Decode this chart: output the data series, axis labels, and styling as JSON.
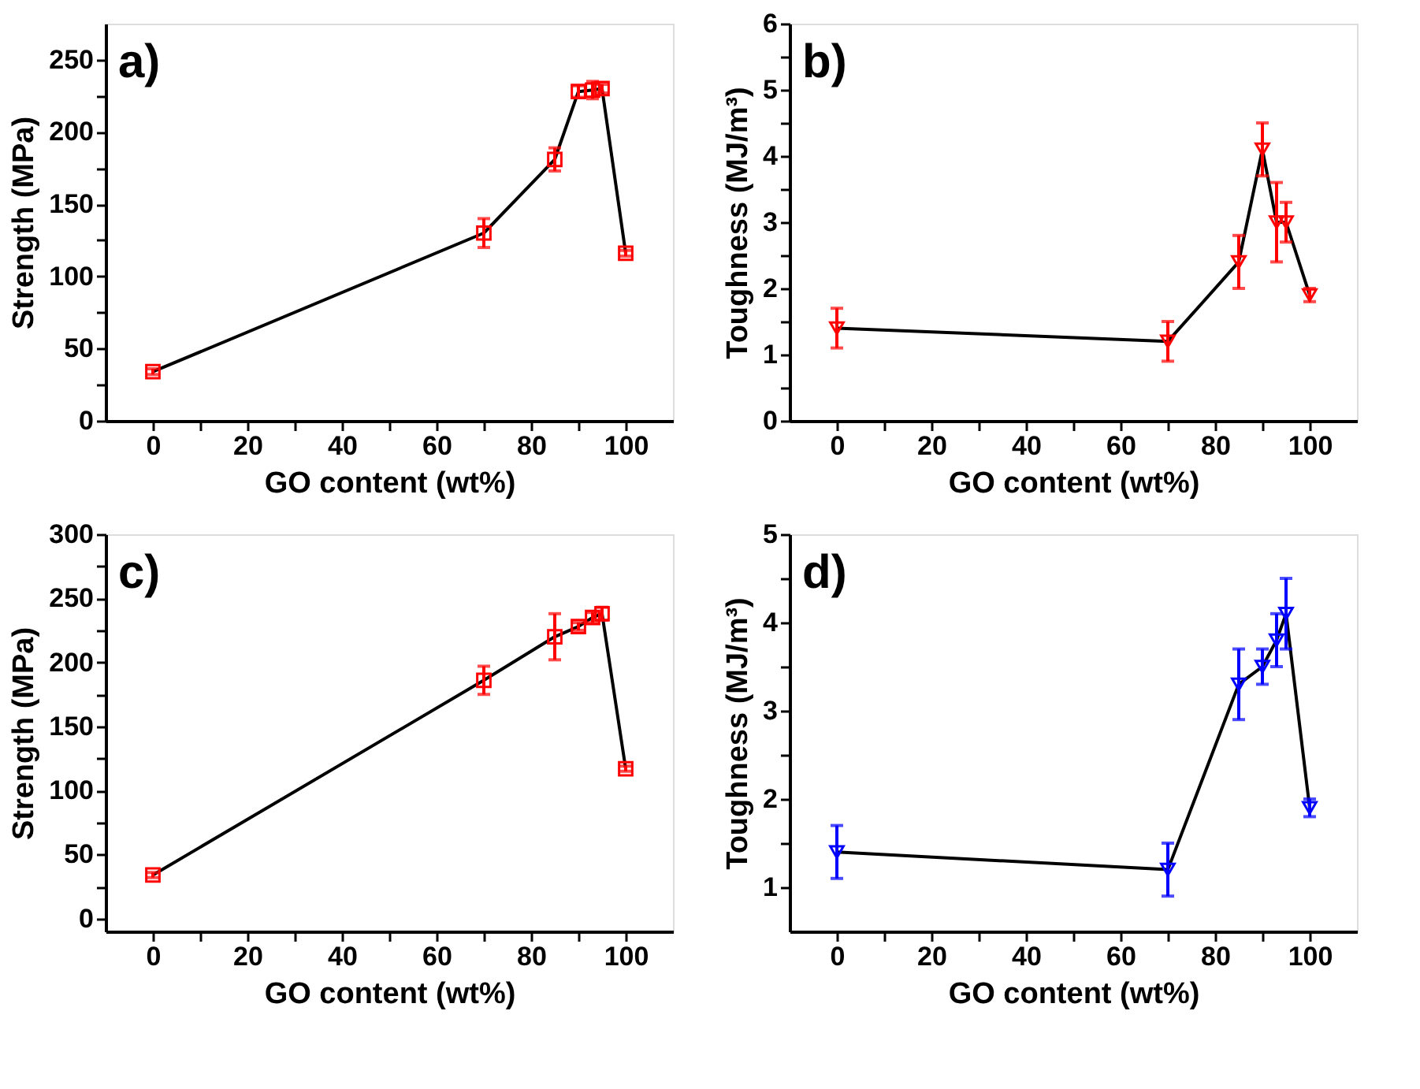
{
  "chart_data": [
    {
      "type": "line",
      "annotations": [
        "a)"
      ],
      "xlabel": "GO content (wt%)",
      "ylabel": "Strength (MPa)",
      "xlim": [
        -10,
        110
      ],
      "xticks": [
        0,
        {
          "value": 10,
          "label": null
        },
        20,
        {
          "value": 30,
          "label": null
        },
        40,
        {
          "value": 50,
          "label": null
        },
        60,
        {
          "value": 70,
          "label": null
        },
        80,
        {
          "value": 90,
          "label": null
        },
        100
      ],
      "ylim": [
        0,
        275
      ],
      "yticks": [
        0,
        {
          "value": 25,
          "label": null
        },
        50,
        {
          "value": 75,
          "label": null
        },
        100,
        {
          "value": 125,
          "label": null
        },
        150,
        {
          "value": 175,
          "label": null
        },
        200,
        {
          "value": 225,
          "label": null
        },
        250
      ],
      "grid": false,
      "x": [
        0,
        70,
        85,
        90,
        93,
        95,
        100
      ],
      "series": [
        {
          "color": "#000000",
          "values": [
            34,
            130,
            181,
            228,
            229,
            230,
            116
          ],
          "marker": "none"
        },
        {
          "type": "scatter",
          "color": "#ff0000",
          "marker": "square",
          "values": [
            34,
            130,
            181,
            228,
            229,
            230,
            116
          ],
          "errors": [
            2,
            10,
            8,
            4,
            6,
            3,
            2
          ]
        }
      ]
    },
    {
      "type": "line",
      "annotations": [
        "b)"
      ],
      "xlabel": "GO content (wt%)",
      "ylabel": "Toughness (MJ/m³)",
      "xlim": [
        -10,
        110
      ],
      "xticks": [
        0,
        {
          "value": 10,
          "label": null
        },
        20,
        {
          "value": 30,
          "label": null
        },
        40,
        {
          "value": 50,
          "label": null
        },
        60,
        {
          "value": 70,
          "label": null
        },
        80,
        {
          "value": 90,
          "label": null
        },
        100
      ],
      "ylim": [
        0,
        6
      ],
      "yticks": [
        0,
        {
          "value": 0.5,
          "label": null
        },
        1,
        {
          "value": 1.5,
          "label": null
        },
        2,
        {
          "value": 2.5,
          "label": null
        },
        3,
        {
          "value": 3.5,
          "label": null
        },
        4,
        {
          "value": 4.5,
          "label": null
        },
        5,
        {
          "value": 5.5,
          "label": null
        },
        6
      ],
      "grid": false,
      "x": [
        0,
        70,
        85,
        90,
        93,
        95,
        100
      ],
      "series": [
        {
          "color": "#000000",
          "values": [
            1.4,
            1.2,
            2.4,
            4.1,
            3.0,
            3.0,
            1.9
          ],
          "marker": "none"
        },
        {
          "type": "scatter",
          "color": "#ff0000",
          "marker": "triangle",
          "values": [
            1.4,
            1.2,
            2.4,
            4.1,
            3.0,
            3.0,
            1.9
          ],
          "errors": [
            0.3,
            0.3,
            0.4,
            0.4,
            0.6,
            0.3,
            0.1
          ]
        }
      ]
    },
    {
      "type": "line",
      "annotations": [
        "c)"
      ],
      "xlabel": "GO content (wt%)",
      "ylabel": "Strength (MPa)",
      "xlim": [
        -10,
        110
      ],
      "xticks": [
        0,
        {
          "value": 10,
          "label": null
        },
        20,
        {
          "value": 30,
          "label": null
        },
        40,
        {
          "value": 50,
          "label": null
        },
        60,
        {
          "value": 70,
          "label": null
        },
        80,
        {
          "value": 90,
          "label": null
        },
        100
      ],
      "ylim": [
        -10,
        300
      ],
      "yticks": [
        0,
        {
          "value": 25,
          "label": null
        },
        50,
        {
          "value": 75,
          "label": null
        },
        100,
        {
          "value": 125,
          "label": null
        },
        150,
        {
          "value": 175,
          "label": null
        },
        200,
        {
          "value": 225,
          "label": null
        },
        250,
        {
          "value": 275,
          "label": null
        },
        300
      ],
      "grid": false,
      "x": [
        0,
        70,
        85,
        90,
        93,
        95,
        100
      ],
      "series": [
        {
          "color": "#000000",
          "values": [
            34,
            186,
            220,
            228,
            235,
            238,
            117
          ],
          "marker": "none"
        },
        {
          "type": "scatter",
          "color": "#ff0000",
          "marker": "square",
          "values": [
            34,
            186,
            220,
            228,
            235,
            238,
            117
          ],
          "errors": [
            2,
            11,
            18,
            3,
            4,
            5,
            2
          ]
        }
      ]
    },
    {
      "type": "line",
      "annotations": [
        "d)"
      ],
      "xlabel": "GO content (wt%)",
      "ylabel": "Toughness (MJ/m³)",
      "xlim": [
        -10,
        110
      ],
      "xticks": [
        0,
        {
          "value": 10,
          "label": null
        },
        20,
        {
          "value": 30,
          "label": null
        },
        40,
        {
          "value": 50,
          "label": null
        },
        60,
        {
          "value": 70,
          "label": null
        },
        80,
        {
          "value": 90,
          "label": null
        },
        100
      ],
      "ylim": [
        0.5,
        5
      ],
      "yticks": [
        1,
        {
          "value": 1.5,
          "label": null
        },
        2,
        {
          "value": 2.5,
          "label": null
        },
        3,
        {
          "value": 3.5,
          "label": null
        },
        4,
        {
          "value": 4.5,
          "label": null
        },
        5
      ],
      "grid": false,
      "x": [
        0,
        70,
        85,
        90,
        93,
        95,
        100
      ],
      "series": [
        {
          "color": "#000000",
          "values": [
            1.4,
            1.2,
            3.3,
            3.5,
            3.8,
            4.1,
            1.9
          ],
          "marker": "none"
        },
        {
          "type": "scatter",
          "color": "#0000ff",
          "marker": "triangle",
          "values": [
            1.4,
            1.2,
            3.3,
            3.5,
            3.8,
            4.1,
            1.9
          ],
          "errors": [
            0.3,
            0.3,
            0.4,
            0.2,
            0.3,
            0.4,
            0.1
          ]
        }
      ]
    }
  ]
}
